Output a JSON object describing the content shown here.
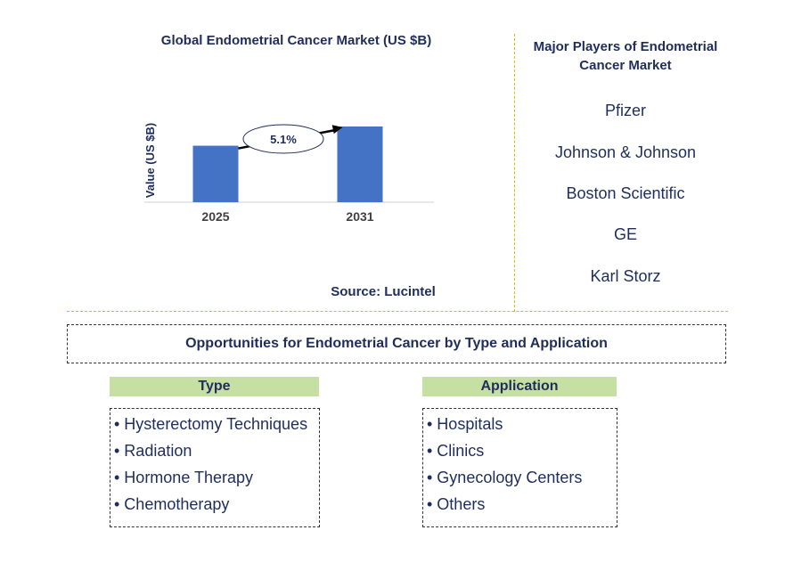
{
  "chart_title": "Global Endometrial Cancer Market (US $B)",
  "source": "Source: Lucintel",
  "chart_data": {
    "type": "bar",
    "categories": [
      "2025",
      "2031"
    ],
    "values": [
      1.0,
      1.34
    ],
    "ylabel": "Value (US $B)",
    "annotation": "5.1%",
    "colors": {
      "bar": "#4472c4"
    }
  },
  "players": {
    "title": "Major Players of Endometrial Cancer Market",
    "items": [
      "Pfizer",
      "Johnson & Johnson",
      "Boston Scientific",
      "GE",
      "Karl Storz"
    ]
  },
  "opportunities": {
    "title": "Opportunities for Endometrial Cancer by Type and Application",
    "type": {
      "header": "Type",
      "items": [
        "• Hysterectomy Techniques",
        "• Radiation",
        "• Hormone Therapy",
        "• Chemotherapy"
      ]
    },
    "application": {
      "header": "Application",
      "items": [
        "• Hospitals",
        "• Clinics",
        "• Gynecology Centers",
        "• Others"
      ]
    }
  },
  "colors": {
    "text": "#1f2d5c",
    "accent_divider": "#f0b400",
    "header_bg": "#c6e0a4"
  }
}
